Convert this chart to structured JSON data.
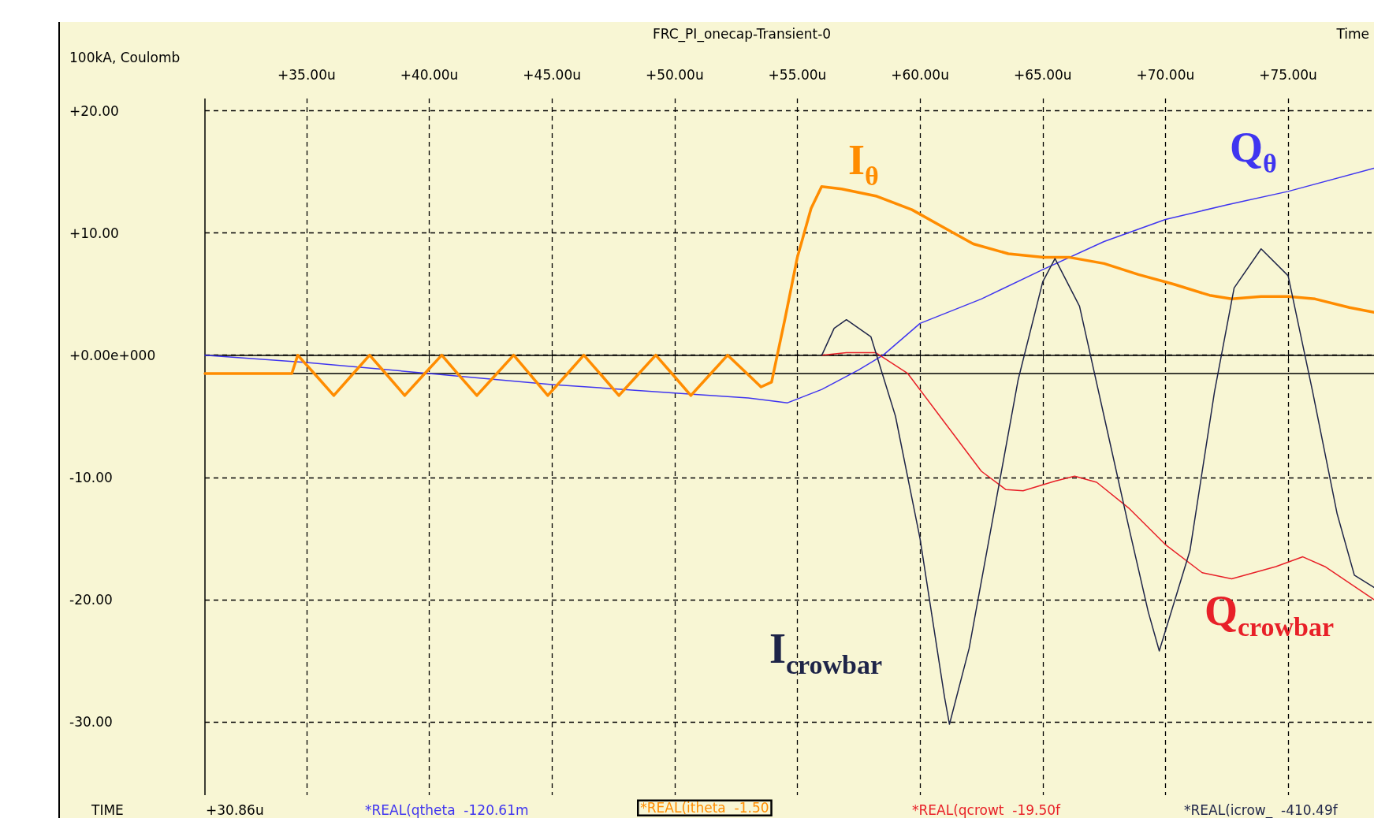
{
  "chart_data": {
    "type": "line",
    "title": "FRC_PI_onecap-Transient-0",
    "xlabel": "Time",
    "ylabel": "100kA, Coulomb",
    "xlim": [
      30.86,
      78.5
    ],
    "ylim": [
      -36,
      21
    ],
    "xticks": [
      {
        "value": 35,
        "label": "+35.00u"
      },
      {
        "value": 40,
        "label": "+40.00u"
      },
      {
        "value": 45,
        "label": "+45.00u"
      },
      {
        "value": 50,
        "label": "+50.00u"
      },
      {
        "value": 55,
        "label": "+55.00u"
      },
      {
        "value": 60,
        "label": "+60.00u"
      },
      {
        "value": 65,
        "label": "+65.00u"
      },
      {
        "value": 70,
        "label": "+70.00u"
      },
      {
        "value": 75,
        "label": "+75.00u"
      }
    ],
    "yticks": [
      {
        "value": 20,
        "label": "+20.00"
      },
      {
        "value": 10,
        "label": "+10.00"
      },
      {
        "value": 0,
        "label": "+0.00e+000"
      },
      {
        "value": -10,
        "label": "-10.00"
      },
      {
        "value": -20,
        "label": "-20.00"
      },
      {
        "value": -30,
        "label": "-30.00"
      }
    ],
    "grid": true,
    "legend": false,
    "marker": "none",
    "line_style": "solid",
    "ref_lines": [
      {
        "axis": "y",
        "value": 0,
        "color": "#000000"
      },
      {
        "axis": "y",
        "value": -1.5,
        "color": "#000000"
      },
      {
        "axis": "x",
        "value": 30.86,
        "color": "#000000"
      }
    ],
    "annotations": [
      "TIME",
      "+30.86u",
      "*REAL(qtheta  -120.61m",
      "*REAL(itheta  -1.50",
      "*REAL(qcrowt  -19.50f",
      "*REAL(icrow_  -410.49f"
    ],
    "series": [
      {
        "name": "Q$_{θ}$",
        "color": "#3f35f0",
        "x": [
          30.86,
          35,
          40,
          45,
          50,
          53,
          54.6,
          56,
          57.5,
          58.5,
          60,
          62.5,
          65,
          67.5,
          70,
          72.5,
          75,
          78.5
        ],
        "values": [
          0,
          -0.6,
          -1.5,
          -2.4,
          -3.1,
          -3.5,
          -3.9,
          -2.8,
          -1.2,
          0,
          2.6,
          4.6,
          7.0,
          9.3,
          11.1,
          12.3,
          13.4,
          15.3
        ]
      },
      {
        "name": "I$_{θ}$",
        "color": "#ff8c00",
        "x": [
          30.86,
          34.4,
          34.64,
          35.38,
          36.11,
          36.84,
          37.57,
          38.29,
          39.0,
          39.75,
          40.51,
          41.22,
          41.94,
          42.69,
          43.44,
          44.14,
          44.83,
          45.57,
          46.3,
          47.02,
          47.73,
          48.48,
          49.23,
          49.95,
          50.66,
          51.41,
          52.16,
          52.84,
          53.52,
          53.95,
          54.5,
          55.0,
          55.56,
          55.99,
          56.8,
          58.24,
          59.67,
          61.1,
          62.17,
          63.6,
          65.03,
          66.1,
          67.5,
          68.9,
          70.35,
          71.8,
          72.7,
          73.9,
          75.0,
          76.1,
          77.5,
          78.5
        ],
        "values": [
          -1.5,
          -1.5,
          0,
          -1.65,
          -3.3,
          -1.65,
          0,
          -1.65,
          -3.3,
          -1.65,
          0,
          -1.65,
          -3.3,
          -1.65,
          0,
          -1.65,
          -3.3,
          -1.65,
          0,
          -1.65,
          -3.3,
          -1.65,
          0,
          -1.65,
          -3.3,
          -1.65,
          0,
          -1.3,
          -2.6,
          -2.2,
          3,
          8,
          12,
          13.8,
          13.6,
          13.0,
          11.9,
          10.3,
          9.1,
          8.3,
          8.0,
          8.0,
          7.5,
          6.6,
          5.8,
          4.9,
          4.6,
          4.8,
          4.8,
          4.6,
          3.9,
          3.5
        ]
      },
      {
        "name": "Q$_{crowbar}$",
        "color": "#e82028",
        "x": [
          56.0,
          57,
          58.2,
          59.5,
          61,
          62.5,
          63.5,
          64.2,
          65.5,
          66.3,
          67.2,
          68.5,
          70,
          71.5,
          72.7,
          74.5,
          75.6,
          76.5,
          78.5
        ],
        "values": [
          0,
          0.2,
          0.2,
          -1.5,
          -5.5,
          -9.5,
          -11.0,
          -11.1,
          -10.3,
          -9.9,
          -10.4,
          -12.5,
          -15.5,
          -17.8,
          -18.3,
          -17.3,
          -16.5,
          -17.3,
          -20.0
        ]
      },
      {
        "name": "I$_{crowbar}$",
        "color": "#1e2448",
        "x": [
          56.0,
          56.5,
          57.0,
          58,
          59,
          60,
          61,
          61.2,
          62,
          63,
          64,
          65,
          65.5,
          66.5,
          67.5,
          68.5,
          69.3,
          69.75,
          71,
          72,
          72.8,
          73.9,
          75,
          76,
          77,
          77.7,
          78.5
        ],
        "values": [
          0,
          2.2,
          2.9,
          1.5,
          -5,
          -15,
          -28,
          -30.2,
          -24,
          -13,
          -2,
          6,
          7.9,
          4,
          -5,
          -14,
          -21,
          -24.2,
          -16,
          -3,
          5.5,
          8.7,
          6.5,
          -3,
          -13,
          -18,
          -19.0
        ]
      }
    ]
  }
}
